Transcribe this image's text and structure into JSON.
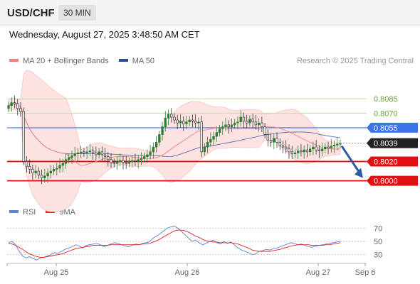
{
  "header": {
    "pair": "USD/CHF",
    "timeframe": "30 MIN",
    "datetime": "Wednesday, August 27, 2025 3:48:50 AM CET"
  },
  "legend_top": {
    "items": [
      {
        "label": "MA 20 + Bollinger Bands",
        "color": "#f08080"
      },
      {
        "label": "MA 50",
        "color": "#2b4f8f"
      }
    ],
    "credit": "Research © 2025 Trading Central"
  },
  "legend_bottom": {
    "items": [
      {
        "label": "RSI",
        "color": "#5b7fdc"
      },
      {
        "label": "9MA",
        "color": "#e02020"
      }
    ]
  },
  "colors": {
    "up_candle": "#2e7d32",
    "down_candle": "#333333",
    "resistance": "#c5e0a5",
    "pivot": "#3b74e8",
    "support": "#e01010",
    "bb_fill": "#fde2e2",
    "ma20": "#f08080",
    "ma50": "#5b6fa8",
    "rsi": "#5b7fdc",
    "rsi_ma": "#e02020",
    "arrow": "#2b5aa8"
  },
  "chart_data": [
    {
      "type": "candlestick",
      "title": "USD/CHF 30 MIN",
      "x_labels": [
        "Aug 25",
        "Aug 26",
        "Aug 27",
        "Sep 6"
      ],
      "ylim": [
        0.7985,
        0.8105
      ],
      "levels": [
        {
          "value": 0.8085,
          "label": "0.8085",
          "kind": "resistance"
        },
        {
          "value": 0.807,
          "label": "0.8070",
          "kind": "resistance"
        },
        {
          "value": 0.8055,
          "label": "0.8055",
          "kind": "pivot"
        },
        {
          "value": 0.8039,
          "label": "0.8039",
          "kind": "last"
        },
        {
          "value": 0.802,
          "label": "0.8020",
          "kind": "support"
        },
        {
          "value": 0.8,
          "label": "0.8000",
          "kind": "support"
        }
      ],
      "close_series": [
        0.8078,
        0.8081,
        0.808,
        0.8075,
        0.8072,
        0.802,
        0.8015,
        0.8012,
        0.8008,
        0.801,
        0.8006,
        0.8003,
        0.8005,
        0.8008,
        0.801,
        0.8012,
        0.8013,
        0.8016,
        0.8018,
        0.8022,
        0.8024,
        0.8026,
        0.8028,
        0.8029,
        0.803,
        0.8029,
        0.803,
        0.8031,
        0.8029,
        0.8027,
        0.803,
        0.8027,
        0.8025,
        0.8022,
        0.8019,
        0.8018,
        0.802,
        0.8021,
        0.8019,
        0.8018,
        0.802,
        0.8021,
        0.802,
        0.8022,
        0.8023,
        0.8025,
        0.8027,
        0.803,
        0.8035,
        0.804,
        0.8048,
        0.8056,
        0.8065,
        0.8069,
        0.8066,
        0.8063,
        0.806,
        0.8062,
        0.8059,
        0.8061,
        0.8063,
        0.8062,
        0.806,
        0.8061,
        0.803,
        0.8035,
        0.804,
        0.8043,
        0.8046,
        0.805,
        0.8054,
        0.8056,
        0.8058,
        0.8056,
        0.8058,
        0.806,
        0.8061,
        0.8066,
        0.8062,
        0.806,
        0.8064,
        0.8061,
        0.8058,
        0.806,
        0.8056,
        0.8048,
        0.8042,
        0.804,
        0.8044,
        0.804,
        0.8036,
        0.8035,
        0.8033,
        0.803,
        0.8028,
        0.8029,
        0.8031,
        0.803,
        0.8032,
        0.803,
        0.8033,
        0.8035,
        0.8032,
        0.8031,
        0.8033,
        0.8035,
        0.8034,
        0.8036,
        0.8037,
        0.8038,
        0.8039
      ],
      "projection": {
        "from": 0.8039,
        "to": 0.8
      }
    },
    {
      "type": "line",
      "title": "RSI",
      "ylim": [
        20,
        80
      ],
      "y_ticks": [
        70,
        50,
        30
      ],
      "series": [
        {
          "name": "RSI",
          "values": [
            48,
            50,
            45,
            35,
            28,
            25,
            27,
            24,
            22,
            25,
            26,
            28,
            30,
            33,
            32,
            35,
            38,
            40,
            42,
            45,
            43,
            40,
            44,
            45,
            46,
            47,
            45,
            42,
            44,
            46,
            48,
            47,
            45,
            43,
            42,
            44,
            46,
            45,
            47,
            48,
            50,
            55,
            58,
            62,
            66,
            70,
            72,
            73,
            70,
            65,
            60,
            55,
            50,
            52,
            48,
            45,
            47,
            50,
            52,
            48,
            46,
            50,
            47,
            49,
            45,
            40,
            37,
            35,
            33,
            30,
            31,
            35,
            36,
            38,
            37,
            39,
            40,
            42,
            44,
            46,
            48,
            47,
            45,
            46,
            44,
            42,
            41,
            43,
            44,
            45,
            46,
            47,
            48,
            49,
            50
          ]
        },
        {
          "name": "9MA",
          "values": [
            47,
            46,
            44,
            41,
            38,
            34,
            31,
            29,
            27,
            26,
            26,
            27,
            28,
            29,
            30,
            31,
            33,
            35,
            37,
            39,
            40,
            41,
            42,
            43,
            44,
            44,
            44,
            44,
            44,
            45,
            45,
            45,
            45,
            45,
            45,
            45,
            45,
            45,
            46,
            46,
            47,
            49,
            51,
            54,
            57,
            60,
            63,
            66,
            67,
            67,
            66,
            64,
            61,
            58,
            56,
            53,
            51,
            50,
            49,
            49,
            48,
            48,
            48,
            48,
            47,
            46,
            44,
            42,
            40,
            37,
            36,
            35,
            35,
            35,
            35,
            36,
            37,
            38,
            40,
            41,
            43,
            44,
            45,
            45,
            45,
            45,
            44,
            44,
            44,
            44,
            45,
            45,
            46,
            47,
            48
          ]
        }
      ]
    }
  ]
}
